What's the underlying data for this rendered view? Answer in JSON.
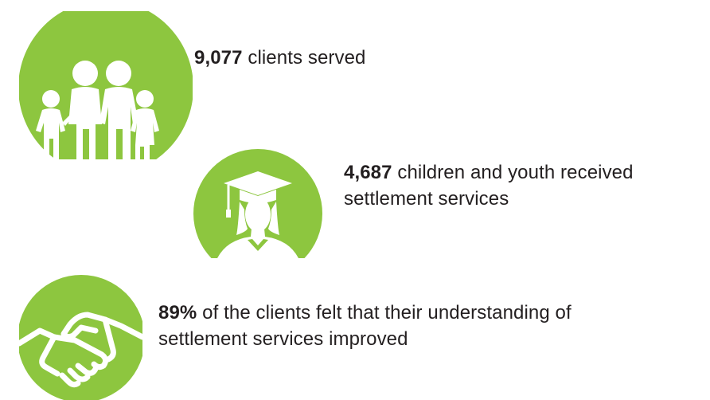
{
  "colors": {
    "accent": "#8dc63f",
    "text": "#231f20",
    "background": "#ffffff"
  },
  "stats": [
    {
      "icon": "family-icon",
      "number": "9,077",
      "line1": "clients served",
      "line2": ""
    },
    {
      "icon": "graduate-icon",
      "number": "4,687",
      "line1": "children and youth received",
      "line2": "settlement services"
    },
    {
      "icon": "handshake-icon",
      "number": "89%",
      "line1": "of the clients felt that their understanding of",
      "line2": "settlement services improved"
    }
  ]
}
